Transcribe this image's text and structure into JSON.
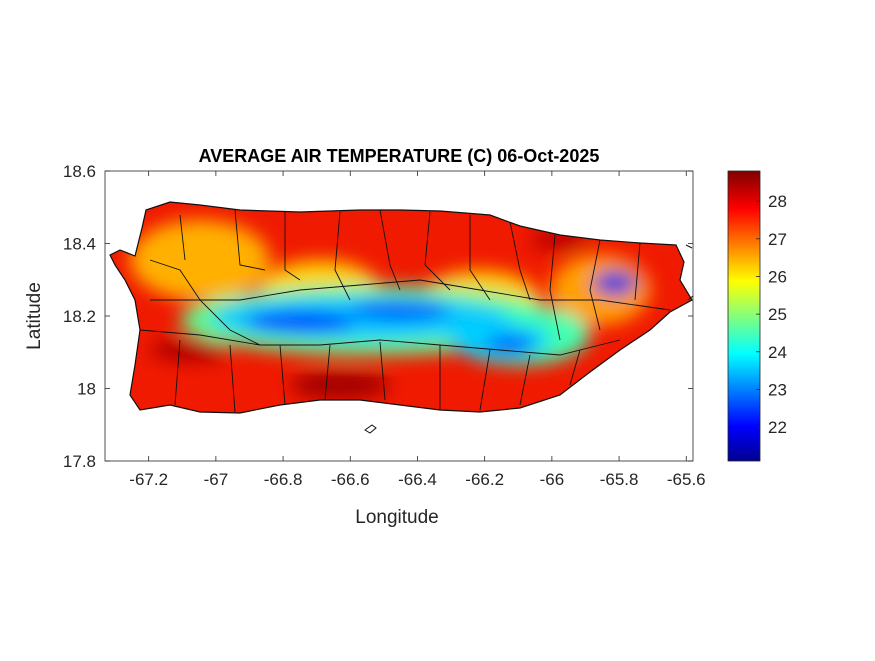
{
  "chart_data": {
    "type": "heatmap",
    "title": "AVERAGE AIR TEMPERATURE (C) 06-Oct-2025",
    "xlabel": "Longitude",
    "ylabel": "Latitude",
    "xlim": [
      -67.33,
      -65.58
    ],
    "ylim": [
      17.8,
      18.6
    ],
    "xticks": [
      -67.2,
      -67,
      -66.8,
      -66.6,
      -66.4,
      -66.2,
      -66,
      -65.8,
      -65.6
    ],
    "xtick_labels": [
      "-67.2",
      "-67",
      "-66.8",
      "-66.6",
      "-66.4",
      "-66.2",
      "-66",
      "-65.8",
      "-65.6"
    ],
    "yticks": [
      17.8,
      18,
      18.2,
      18.4,
      18.6
    ],
    "ytick_labels": [
      "17.8",
      "18",
      "18.2",
      "18.4",
      "18.6"
    ],
    "colorbar": {
      "colormap": "jet",
      "clim": [
        21.1,
        28.8
      ],
      "ticks": [
        22,
        23,
        24,
        25,
        26,
        27,
        28
      ],
      "tick_labels": [
        "22",
        "23",
        "24",
        "25",
        "26",
        "27",
        "28"
      ],
      "location": "right"
    },
    "grid": false,
    "features": [
      {
        "region": "central mountain band",
        "value_range": [
          22,
          24.5
        ]
      },
      {
        "region": "eastern peak near -65.8",
        "value_range": [
          22.5,
          24
        ]
      },
      {
        "region": "coastal lowlands",
        "value_range": [
          27,
          28.8
        ]
      },
      {
        "region": "northwest interior",
        "value_range": [
          25.5,
          27
        ]
      }
    ]
  }
}
